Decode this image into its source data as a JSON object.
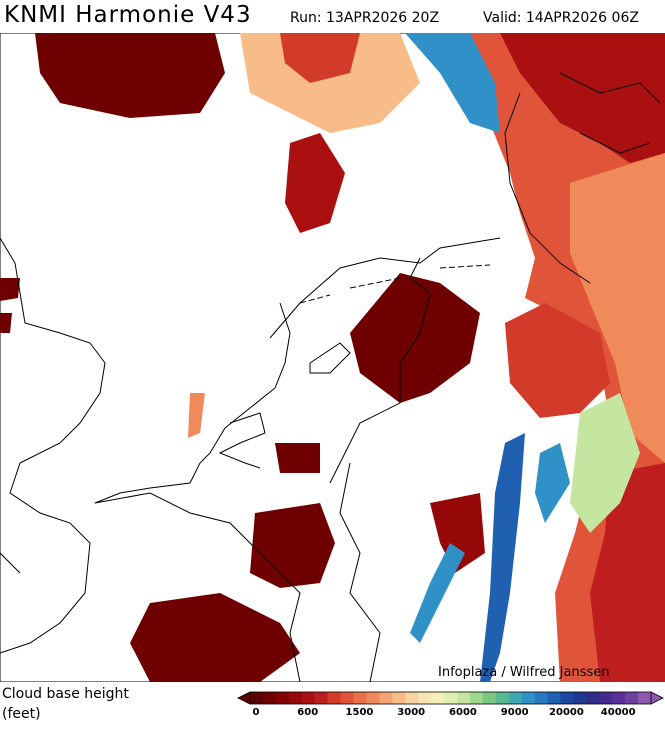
{
  "header": {
    "title": "KNMI Harmonie V43",
    "run": "Run: 13APR2026 20Z",
    "valid": "Valid: 14APR2026 06Z"
  },
  "map": {
    "credit": "Infoplaza / Wilfred Janssen"
  },
  "legend": {
    "label_line1": "Cloud base height",
    "label_line2": "(feet)",
    "ticks": [
      0,
      600,
      1500,
      3000,
      6000,
      9000,
      20000,
      40000
    ],
    "colors": [
      "#5a0000",
      "#6e0000",
      "#820000",
      "#960808",
      "#aa1010",
      "#bf1e1e",
      "#d23a2a",
      "#e0553a",
      "#ea7048",
      "#f08a5a",
      "#f4a470",
      "#f7bc88",
      "#f9d2a0",
      "#fbe4b4",
      "#f4f0b8",
      "#e0f0b0",
      "#c4e6a0",
      "#a0d890",
      "#78c880",
      "#58b890",
      "#40a8b0",
      "#3090c8",
      "#2878c0",
      "#2060b0",
      "#1848a0",
      "#203890",
      "#302c88",
      "#442a90",
      "#5a3098",
      "#7040a0",
      "#8c58b0"
    ]
  }
}
